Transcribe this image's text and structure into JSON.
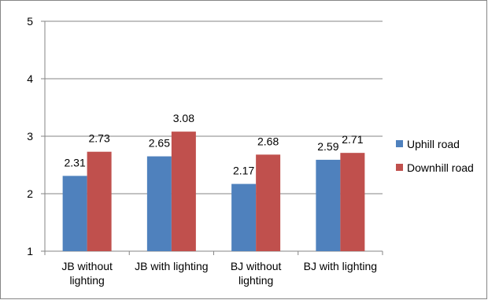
{
  "chart_data": {
    "type": "bar",
    "categories": [
      [
        "JB without",
        "lighting"
      ],
      [
        "JB with lighting"
      ],
      [
        "BJ without",
        "lighting"
      ],
      [
        "BJ with lighting"
      ]
    ],
    "series": [
      {
        "name": "Uphill road",
        "color": "#4f81bd",
        "values": [
          2.31,
          2.65,
          2.17,
          2.59
        ]
      },
      {
        "name": "Downhill road",
        "color": "#c0504d",
        "values": [
          2.73,
          3.08,
          2.68,
          2.71
        ]
      }
    ],
    "ylim": [
      1,
      5
    ],
    "yticks": [
      1,
      2,
      3,
      4,
      5
    ],
    "grid": true,
    "legend_position": "right"
  }
}
